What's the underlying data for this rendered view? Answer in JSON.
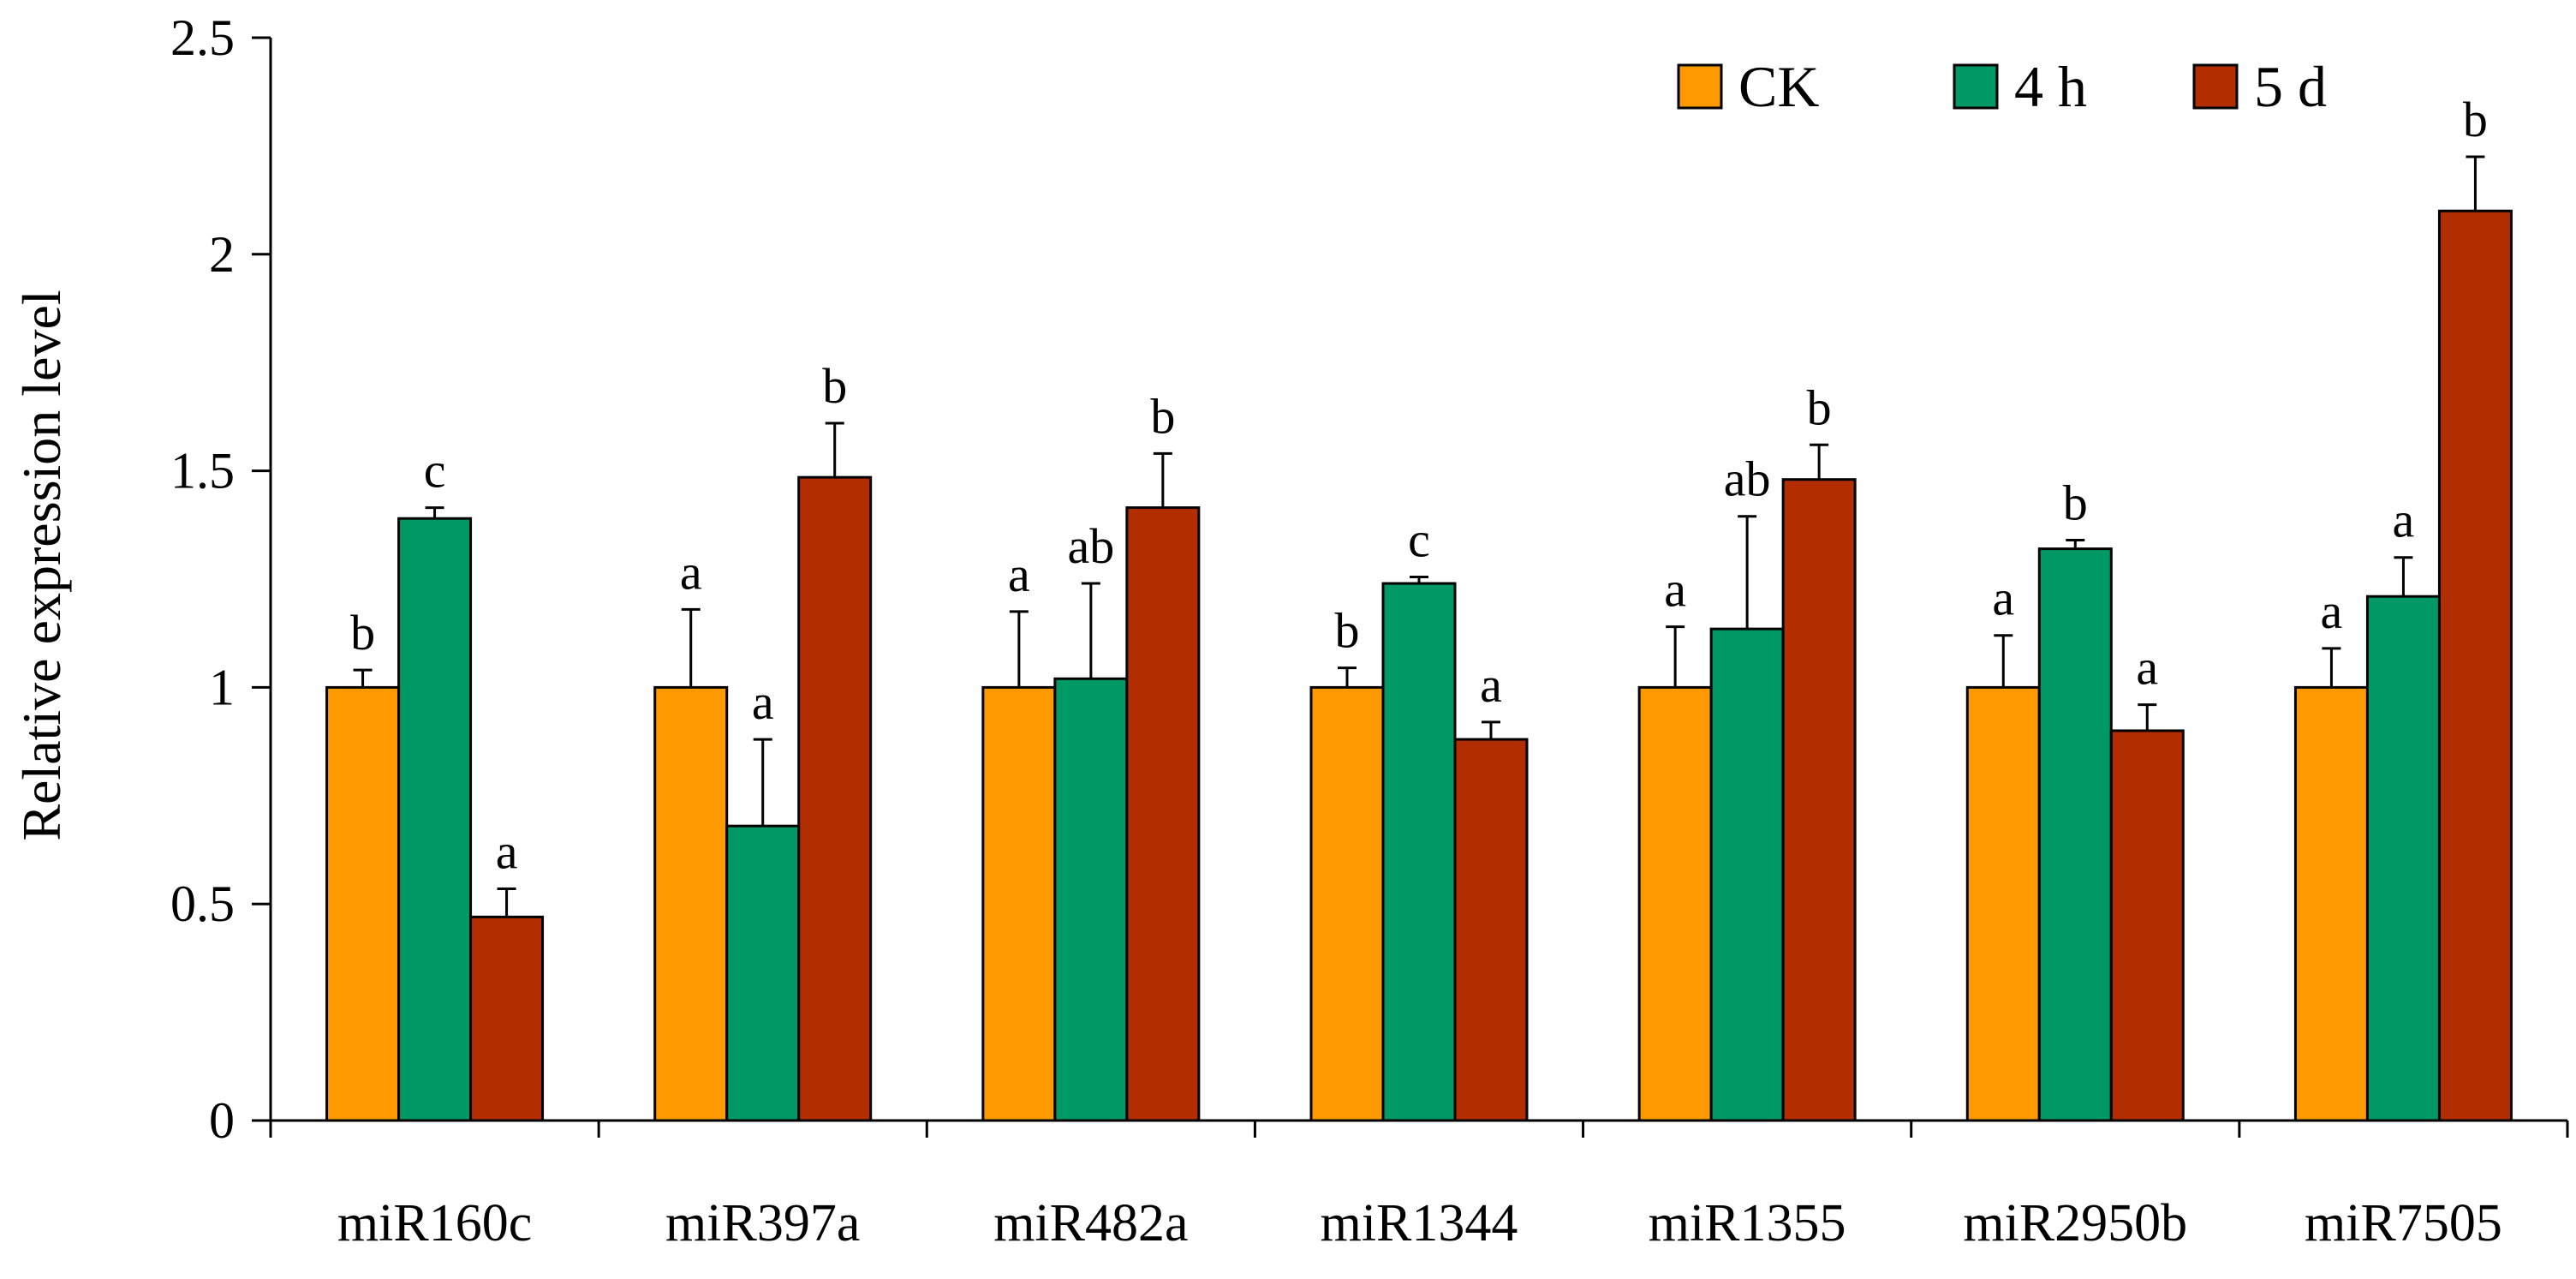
{
  "chart_data": {
    "type": "bar",
    "title": "",
    "xlabel": "",
    "ylabel": "Relative expression level",
    "ylim": [
      0,
      2.5
    ],
    "yticks": [
      0,
      0.5,
      1,
      1.5,
      2,
      2.5
    ],
    "ytick_labels": [
      "0",
      "0.5",
      "1",
      "1.5",
      "2",
      "2.5"
    ],
    "grid": false,
    "legend_position": "top-right",
    "categories": [
      "miR160c",
      "miR397a",
      "miR482a",
      "miR1344",
      "miR1355",
      "miR2950b",
      "miR7505"
    ],
    "series": [
      {
        "name": "CK",
        "color": "#ff9900",
        "values": [
          1.0,
          1.0,
          1.0,
          1.0,
          1.0,
          1.0,
          1.0
        ],
        "errors": [
          0.04,
          0.18,
          0.175,
          0.045,
          0.14,
          0.12,
          0.09
        ],
        "labels": [
          "b",
          "a",
          "a",
          "b",
          "a",
          "a",
          "a"
        ]
      },
      {
        "name": "4 h",
        "color": "#009966",
        "values": [
          1.39,
          0.68,
          1.02,
          1.24,
          1.135,
          1.32,
          1.21
        ],
        "errors": [
          0.025,
          0.2,
          0.22,
          0.015,
          0.26,
          0.02,
          0.09
        ],
        "labels": [
          "c",
          "a",
          "ab",
          "c",
          "ab",
          "b",
          "a"
        ]
      },
      {
        "name": "5 d",
        "color": "#b22e00",
        "values": [
          0.47,
          1.485,
          1.415,
          0.88,
          1.48,
          0.9,
          2.1
        ],
        "errors": [
          0.065,
          0.125,
          0.125,
          0.04,
          0.08,
          0.06,
          0.125
        ],
        "labels": [
          "a",
          "b",
          "b",
          "a",
          "b",
          "a",
          "b"
        ]
      }
    ]
  }
}
